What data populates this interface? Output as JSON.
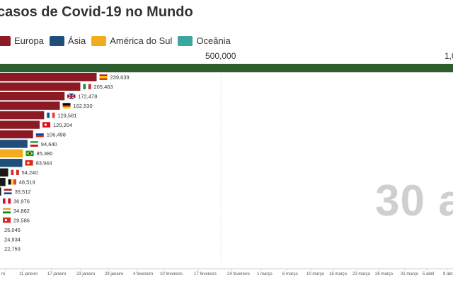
{
  "title": "casos de Covid-19 no Mundo",
  "legend": [
    {
      "name": "Europa",
      "color": "#8b1a24"
    },
    {
      "name": "Ásia",
      "color": "#1f4e7a"
    },
    {
      "name": "América do Sul",
      "color": "#f0ac1c"
    },
    {
      "name": "Oceânia",
      "color": "#3aa6a0"
    }
  ],
  "top_axis": {
    "tick_500k": "500,000",
    "tick_1m": "1,0"
  },
  "current_date": "30 a",
  "chart_data": {
    "type": "bar",
    "title": "casos de Covid-19 no Mundo",
    "orientation": "horizontal",
    "xlim": [
      0,
      1000000
    ],
    "leader": {
      "color": "#2e5e2e"
    },
    "bars": [
      {
        "value": 239639,
        "label": "239,639",
        "color": "#8b1a24",
        "flag": "spain"
      },
      {
        "value": 205463,
        "label": "205,463",
        "color": "#8b1a24",
        "flag": "italy"
      },
      {
        "value": 172478,
        "label": "172,478",
        "color": "#8b1a24",
        "flag": "uk"
      },
      {
        "value": 162530,
        "label": "162,530",
        "color": "#8b1a24",
        "flag": "germany"
      },
      {
        "value": 129581,
        "label": "129,581",
        "color": "#8b1a24",
        "flag": "france"
      },
      {
        "value": 120204,
        "label": "120,204",
        "color": "#8b1a24",
        "flag": "turkey"
      },
      {
        "value": 106498,
        "label": "106,498",
        "color": "#8b1a24",
        "flag": "russia"
      },
      {
        "value": 94640,
        "label": "94,640",
        "color": "#1f4e7a",
        "flag": "iran"
      },
      {
        "value": 85380,
        "label": "85,380",
        "color": "#f0ac1c",
        "flag": "brazil"
      },
      {
        "value": 83944,
        "label": "83,944",
        "color": "#1f4e7a",
        "flag": "china"
      },
      {
        "value": 54240,
        "label": "54,240",
        "color": "#1a1a1a",
        "flag": "canada"
      },
      {
        "value": 48519,
        "label": "48,519",
        "color": "#1a1a1a",
        "flag": "belgium"
      },
      {
        "value": 39512,
        "label": "39,512",
        "color": "#1a1a1a",
        "flag": "netherlands"
      },
      {
        "value": 36976,
        "label": "36,976",
        "color": "#1a1a1a",
        "flag": "peru"
      },
      {
        "value": 34862,
        "label": "34,862",
        "color": "#1a1a1a",
        "flag": "india"
      },
      {
        "value": 29586,
        "label": "29,586",
        "color": "#1a1a1a",
        "flag": "red"
      },
      {
        "value": 25045,
        "label": "25,045",
        "color": "#1a1a1a",
        "flag": "none"
      },
      {
        "value": 24934,
        "label": "24,934",
        "color": "#1a1a1a",
        "flag": "none"
      },
      {
        "value": 22753,
        "label": "22,753",
        "color": "#1a1a1a",
        "flag": "none"
      }
    ],
    "timeline_labels": [
      "ro",
      "11 janeiro",
      "17 janeiro",
      "23 janeiro",
      "29 janeiro",
      "4 fevereiro",
      "10 fevereiro",
      "17 fevereiro",
      "24 fevereiro",
      "1 março",
      "6 março",
      "10 março",
      "16 março",
      "22 março",
      "26 março",
      "31 março",
      "5 abril",
      "9 abril"
    ]
  }
}
